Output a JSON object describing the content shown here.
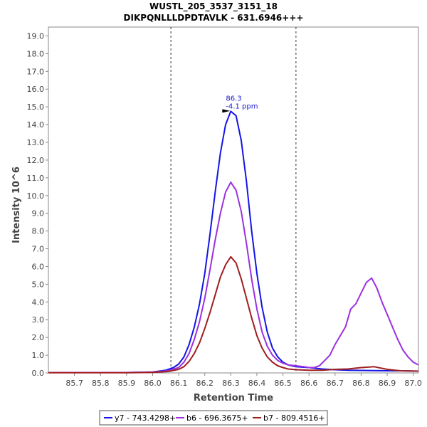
{
  "chart_data": {
    "type": "line",
    "title": "WUSTL_205_3537_3151_18",
    "subtitle": "DIKPQNLLLDPDTAVLK - 631.6946+++",
    "xlabel": "Retention Time",
    "ylabel": "Intensity 10^6",
    "xlim": [
      85.6,
      87.02
    ],
    "ylim": [
      0,
      19.5
    ],
    "x_ticks": [
      "85.7",
      "85.8",
      "85.9",
      "86.0",
      "86.1",
      "86.2",
      "86.3",
      "86.4",
      "86.5",
      "86.6",
      "86.7",
      "86.8",
      "86.9",
      "87.0"
    ],
    "y_ticks": [
      "0.0",
      "1.0",
      "2.0",
      "3.0",
      "4.0",
      "5.0",
      "6.0",
      "7.0",
      "8.0",
      "9.0",
      "10.0",
      "11.0",
      "12.0",
      "13.0",
      "14.0",
      "15.0",
      "16.0",
      "17.0",
      "18.0",
      "19.0"
    ],
    "boundaries": [
      86.07,
      86.55
    ],
    "annotation": {
      "x": 86.3,
      "y": 14.75,
      "line1": "86.3",
      "line2": "-4.1 ppm"
    },
    "legend_placement": "bottom",
    "series": [
      {
        "name": "y7 - 743.4298+",
        "color": "#1414e6",
        "x": [
          85.6,
          85.9,
          86.0,
          86.05,
          86.08,
          86.1,
          86.12,
          86.14,
          86.16,
          86.18,
          86.2,
          86.22,
          86.24,
          86.26,
          86.28,
          86.3,
          86.32,
          86.34,
          86.36,
          86.38,
          86.4,
          86.42,
          86.44,
          86.46,
          86.48,
          86.5,
          86.52,
          86.55,
          86.6,
          86.65,
          86.7,
          86.75,
          86.8,
          86.85,
          86.9,
          86.95,
          87.02
        ],
        "y": [
          0.02,
          0.02,
          0.05,
          0.15,
          0.3,
          0.5,
          0.9,
          1.6,
          2.6,
          3.9,
          5.6,
          7.8,
          10.2,
          12.4,
          14.0,
          14.75,
          14.5,
          13.1,
          10.8,
          8.0,
          5.6,
          3.7,
          2.3,
          1.4,
          0.9,
          0.6,
          0.45,
          0.35,
          0.3,
          0.22,
          0.18,
          0.15,
          0.14,
          0.13,
          0.12,
          0.12,
          0.1
        ]
      },
      {
        "name": "b6 - 696.3675+",
        "color": "#9b30e0",
        "x": [
          85.6,
          85.9,
          86.0,
          86.06,
          86.1,
          86.12,
          86.14,
          86.16,
          86.18,
          86.2,
          86.22,
          86.24,
          86.26,
          86.28,
          86.3,
          86.32,
          86.34,
          86.36,
          86.38,
          86.4,
          86.42,
          86.44,
          86.46,
          86.48,
          86.5,
          86.52,
          86.55,
          86.58,
          86.6,
          86.62,
          86.64,
          86.66,
          86.68,
          86.7,
          86.72,
          86.74,
          86.76,
          86.78,
          86.8,
          86.82,
          86.84,
          86.86,
          86.88,
          86.9,
          86.92,
          86.94,
          86.96,
          86.98,
          87.0,
          87.02
        ],
        "y": [
          0.02,
          0.02,
          0.05,
          0.12,
          0.3,
          0.6,
          1.1,
          1.9,
          2.9,
          4.2,
          5.8,
          7.5,
          9.0,
          10.2,
          10.75,
          10.3,
          9.1,
          7.3,
          5.3,
          3.6,
          2.3,
          1.5,
          1.0,
          0.7,
          0.55,
          0.45,
          0.4,
          0.35,
          0.3,
          0.3,
          0.4,
          0.7,
          1.0,
          1.6,
          2.1,
          2.6,
          3.6,
          3.9,
          4.5,
          5.1,
          5.35,
          4.8,
          4.0,
          3.3,
          2.6,
          1.9,
          1.3,
          0.9,
          0.6,
          0.45
        ]
      },
      {
        "name": "b7 - 809.4516+",
        "color": "#a01e1e",
        "x": [
          85.6,
          85.9,
          86.0,
          86.06,
          86.1,
          86.12,
          86.14,
          86.16,
          86.18,
          86.2,
          86.22,
          86.24,
          86.26,
          86.28,
          86.3,
          86.32,
          86.34,
          86.36,
          86.38,
          86.4,
          86.42,
          86.44,
          86.46,
          86.48,
          86.5,
          86.52,
          86.55,
          86.6,
          86.65,
          86.7,
          86.75,
          86.8,
          86.85,
          86.9,
          86.95,
          87.02
        ],
        "y": [
          0.01,
          0.01,
          0.03,
          0.08,
          0.2,
          0.35,
          0.65,
          1.1,
          1.7,
          2.5,
          3.4,
          4.4,
          5.4,
          6.1,
          6.55,
          6.2,
          5.3,
          4.2,
          3.1,
          2.1,
          1.4,
          0.9,
          0.6,
          0.4,
          0.3,
          0.22,
          0.18,
          0.15,
          0.15,
          0.2,
          0.22,
          0.3,
          0.35,
          0.2,
          0.12,
          0.1
        ]
      }
    ]
  }
}
